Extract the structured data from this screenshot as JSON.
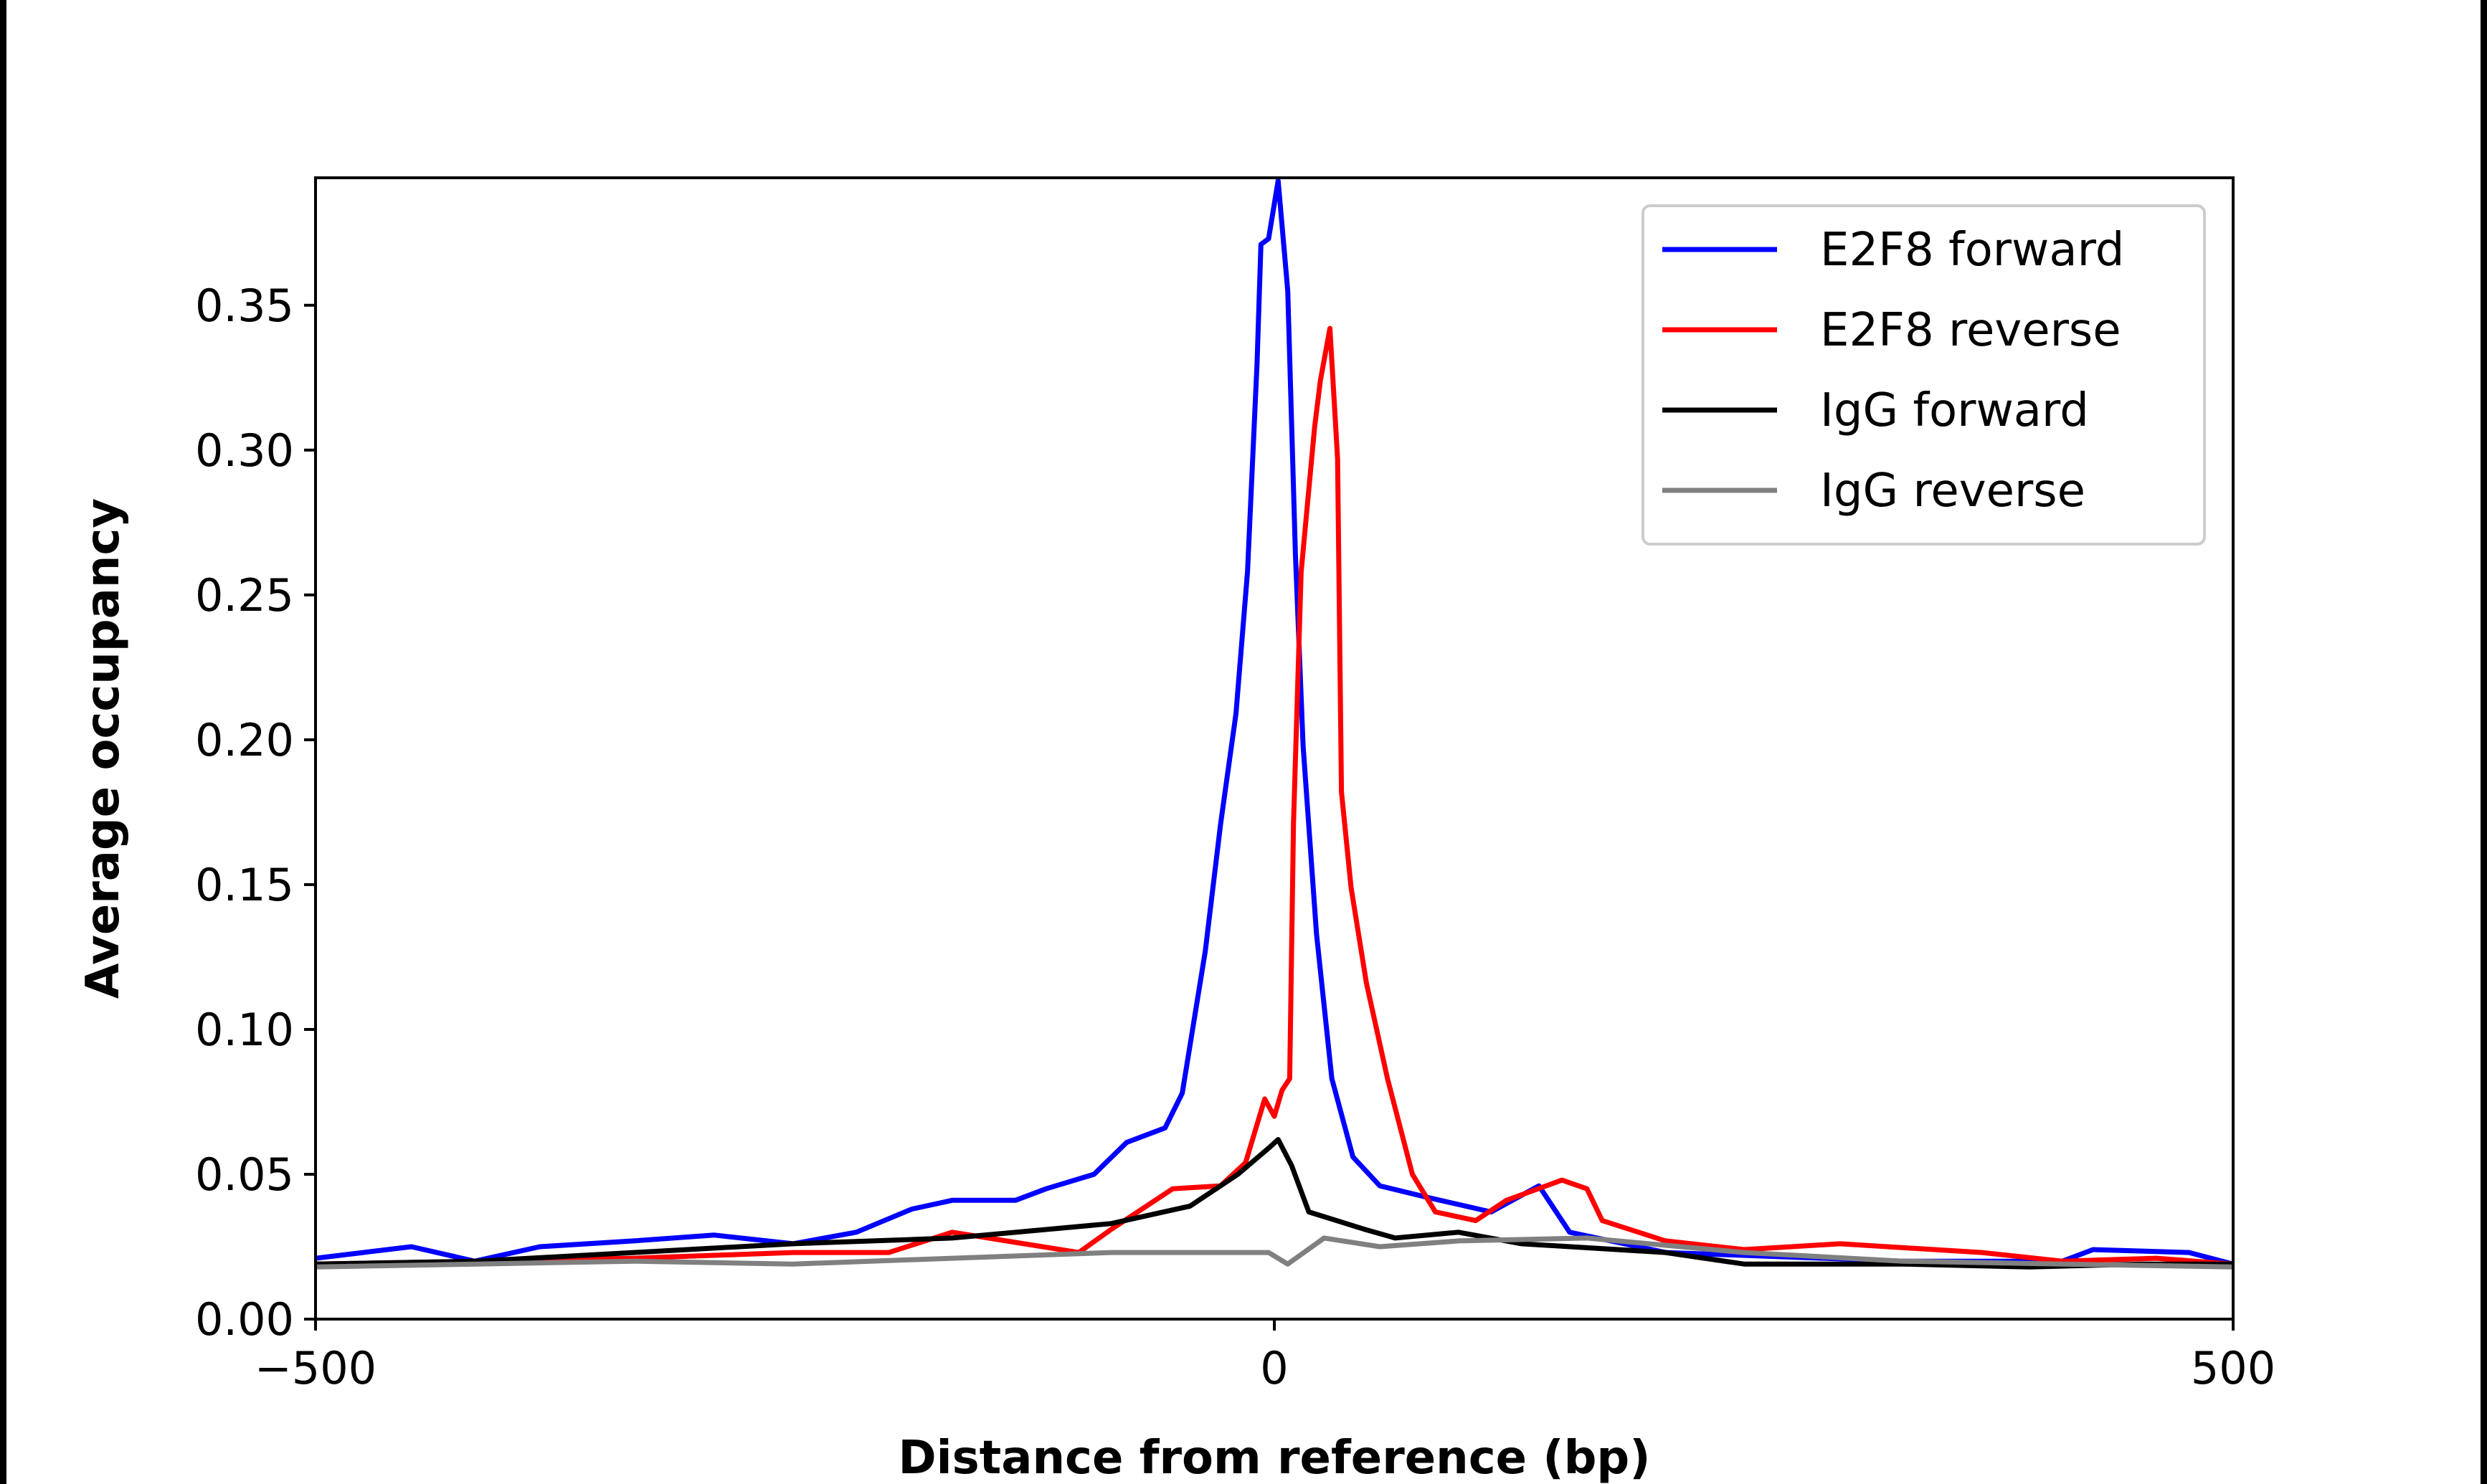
{
  "chart_data": {
    "type": "line",
    "title": "",
    "xlabel": "Distance from reference (bp)",
    "ylabel": "Average occupancy",
    "xlim": [
      -500,
      500
    ],
    "ylim": [
      0,
      0.394
    ],
    "xticks": [
      -500,
      0,
      500
    ],
    "xtick_labels": [
      "−500",
      "0",
      "500"
    ],
    "yticks": [
      0,
      0.05,
      0.1,
      0.15,
      0.2,
      0.25,
      0.3,
      0.35
    ],
    "ytick_labels": [
      "0.00",
      "0.05",
      "0.10",
      "0.15",
      "0.20",
      "0.25",
      "0.30",
      "0.35"
    ],
    "grid": false,
    "legend_position": "top-right",
    "series": [
      {
        "name": "E2F8 forward",
        "color": "#0000ff",
        "points": [
          [
            -500,
            0.021
          ],
          [
            -450,
            0.025
          ],
          [
            -417,
            0.02
          ],
          [
            -383,
            0.025
          ],
          [
            -334,
            0.027
          ],
          [
            -292,
            0.029
          ],
          [
            -251,
            0.026
          ],
          [
            -218,
            0.03
          ],
          [
            -189,
            0.038
          ],
          [
            -168,
            0.041
          ],
          [
            -135,
            0.041
          ],
          [
            -119,
            0.045
          ],
          [
            -94,
            0.05
          ],
          [
            -77,
            0.061
          ],
          [
            -57,
            0.066
          ],
          [
            -48,
            0.078
          ],
          [
            -36,
            0.127
          ],
          [
            -28,
            0.171
          ],
          [
            -20,
            0.209
          ],
          [
            -14,
            0.258
          ],
          [
            -9,
            0.33
          ],
          [
            -7,
            0.371
          ],
          [
            -3,
            0.373
          ],
          [
            2,
            0.393
          ],
          [
            7,
            0.355
          ],
          [
            11,
            0.264
          ],
          [
            15,
            0.198
          ],
          [
            22,
            0.133
          ],
          [
            30,
            0.083
          ],
          [
            41,
            0.056
          ],
          [
            55,
            0.046
          ],
          [
            80,
            0.042
          ],
          [
            113,
            0.037
          ],
          [
            138,
            0.046
          ],
          [
            154,
            0.03
          ],
          [
            204,
            0.023
          ],
          [
            328,
            0.02
          ],
          [
            411,
            0.02
          ],
          [
            427,
            0.024
          ],
          [
            477,
            0.023
          ],
          [
            500,
            0.019
          ]
        ]
      },
      {
        "name": "E2F8 reverse",
        "color": "#ff0000",
        "points": [
          [
            -500,
            0.019
          ],
          [
            -416,
            0.02
          ],
          [
            -334,
            0.021
          ],
          [
            -251,
            0.023
          ],
          [
            -201,
            0.023
          ],
          [
            -168,
            0.03
          ],
          [
            -102,
            0.023
          ],
          [
            -85,
            0.031
          ],
          [
            -53,
            0.045
          ],
          [
            -28,
            0.046
          ],
          [
            -15,
            0.054
          ],
          [
            -5,
            0.076
          ],
          [
            0,
            0.07
          ],
          [
            4,
            0.079
          ],
          [
            8,
            0.083
          ],
          [
            10,
            0.171
          ],
          [
            14,
            0.258
          ],
          [
            21,
            0.308
          ],
          [
            24,
            0.324
          ],
          [
            29,
            0.342
          ],
          [
            33,
            0.297
          ],
          [
            35,
            0.182
          ],
          [
            40,
            0.149
          ],
          [
            48,
            0.116
          ],
          [
            59,
            0.083
          ],
          [
            72,
            0.05
          ],
          [
            84,
            0.037
          ],
          [
            105,
            0.034
          ],
          [
            121,
            0.041
          ],
          [
            150,
            0.048
          ],
          [
            163,
            0.045
          ],
          [
            171,
            0.034
          ],
          [
            204,
            0.027
          ],
          [
            245,
            0.024
          ],
          [
            295,
            0.026
          ],
          [
            369,
            0.023
          ],
          [
            411,
            0.02
          ],
          [
            460,
            0.021
          ],
          [
            500,
            0.019
          ]
        ]
      },
      {
        "name": "IgG forward",
        "color": "#000000",
        "points": [
          [
            -500,
            0.019
          ],
          [
            -416,
            0.02
          ],
          [
            -334,
            0.023
          ],
          [
            -251,
            0.026
          ],
          [
            -168,
            0.028
          ],
          [
            -85,
            0.033
          ],
          [
            -44,
            0.039
          ],
          [
            -19,
            0.05
          ],
          [
            -3,
            0.059
          ],
          [
            2,
            0.062
          ],
          [
            9,
            0.053
          ],
          [
            18,
            0.037
          ],
          [
            47,
            0.031
          ],
          [
            63,
            0.028
          ],
          [
            96,
            0.03
          ],
          [
            129,
            0.026
          ],
          [
            204,
            0.023
          ],
          [
            245,
            0.019
          ],
          [
            328,
            0.019
          ],
          [
            394,
            0.018
          ],
          [
            452,
            0.019
          ],
          [
            500,
            0.019
          ]
        ]
      },
      {
        "name": "IgG reverse",
        "color": "#808080",
        "points": [
          [
            -500,
            0.018
          ],
          [
            -416,
            0.019
          ],
          [
            -334,
            0.02
          ],
          [
            -251,
            0.019
          ],
          [
            -168,
            0.021
          ],
          [
            -85,
            0.023
          ],
          [
            -3,
            0.023
          ],
          [
            7,
            0.019
          ],
          [
            26,
            0.028
          ],
          [
            55,
            0.025
          ],
          [
            96,
            0.027
          ],
          [
            163,
            0.028
          ],
          [
            245,
            0.023
          ],
          [
            328,
            0.02
          ],
          [
            411,
            0.019
          ],
          [
            500,
            0.018
          ]
        ]
      }
    ]
  }
}
